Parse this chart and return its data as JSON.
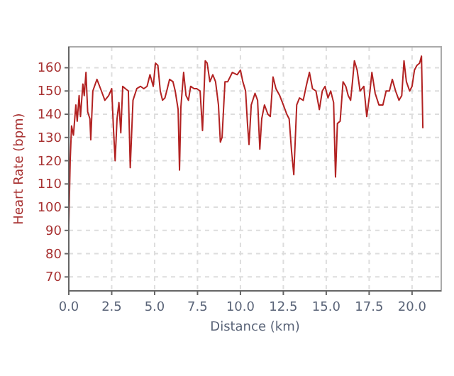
{
  "chart_data": {
    "type": "line",
    "xlabel": "Distance (km)",
    "ylabel": "Heart Rate (bpm)",
    "xlim": [
      0,
      21.7
    ],
    "ylim": [
      64,
      169
    ],
    "xticks": [
      {
        "value": 0,
        "label": "0.0"
      },
      {
        "value": 2.5,
        "label": "2.5"
      },
      {
        "value": 5,
        "label": "5.0"
      },
      {
        "value": 7.5,
        "label": "7.5"
      },
      {
        "value": 10,
        "label": "10.0"
      },
      {
        "value": 12.5,
        "label": "12.5"
      },
      {
        "value": 15,
        "label": "15.0"
      },
      {
        "value": 17.5,
        "label": "17.5"
      },
      {
        "value": 20,
        "label": "20.0"
      }
    ],
    "yticks": [
      70,
      80,
      90,
      100,
      110,
      120,
      130,
      140,
      150,
      160
    ],
    "grid": true,
    "marker": "none",
    "line_style": "solid",
    "x": [
      0,
      0.08,
      0.16,
      0.27,
      0.41,
      0.49,
      0.6,
      0.68,
      0.82,
      0.9,
      1.0,
      1.1,
      1.23,
      1.28,
      1.4,
      1.64,
      1.9,
      2.1,
      2.32,
      2.5,
      2.6,
      2.7,
      2.81,
      2.92,
      3.03,
      3.14,
      3.3,
      3.47,
      3.58,
      3.74,
      3.96,
      4.18,
      4.37,
      4.56,
      4.73,
      4.92,
      5.05,
      5.19,
      5.33,
      5.46,
      5.6,
      5.74,
      5.87,
      6.07,
      6.2,
      6.37,
      6.45,
      6.53,
      6.69,
      6.83,
      6.97,
      7.1,
      7.3,
      7.46,
      7.65,
      7.79,
      7.95,
      8.06,
      8.22,
      8.39,
      8.55,
      8.72,
      8.83,
      8.93,
      9.1,
      9.26,
      9.53,
      9.81,
      10.0,
      10.14,
      10.3,
      10.41,
      10.5,
      10.63,
      10.85,
      11.0,
      11.13,
      11.24,
      11.4,
      11.6,
      11.74,
      11.9,
      12.07,
      12.29,
      12.5,
      12.7,
      12.84,
      12.98,
      13.11,
      13.28,
      13.44,
      13.66,
      13.83,
      14.02,
      14.2,
      14.4,
      14.6,
      14.77,
      14.93,
      15.1,
      15.26,
      15.43,
      15.54,
      15.65,
      15.81,
      15.98,
      16.14,
      16.28,
      16.42,
      16.53,
      16.64,
      16.8,
      16.97,
      17.19,
      17.36,
      17.52,
      17.66,
      17.85,
      18.07,
      18.3,
      18.49,
      18.68,
      18.85,
      19.04,
      19.24,
      19.4,
      19.53,
      19.67,
      19.86,
      20.0,
      20.14,
      20.28,
      20.44,
      20.55,
      20.63
    ],
    "series": [
      {
        "color": "#b22222",
        "values": [
          92,
          120,
          135,
          131,
          144,
          137,
          148,
          139,
          153,
          148,
          158,
          141,
          138,
          129,
          150,
          155,
          150,
          146,
          148,
          151,
          134,
          120,
          138,
          145,
          132,
          152,
          151,
          150,
          117,
          146,
          151,
          152,
          151,
          152,
          157,
          152,
          162,
          161,
          150,
          146,
          147,
          151,
          155,
          154,
          150,
          142,
          116,
          143,
          158,
          148,
          146,
          152,
          151,
          151,
          150,
          133,
          163,
          162,
          154,
          157,
          154,
          144,
          128,
          130,
          154,
          154,
          158,
          157,
          159,
          154,
          150,
          136,
          127,
          144,
          149,
          146,
          125,
          138,
          144,
          140,
          139,
          156,
          151,
          148,
          144,
          140,
          138,
          124,
          114,
          144,
          147,
          146,
          152,
          158,
          151,
          150,
          142,
          150,
          152,
          147,
          150,
          145,
          113,
          136,
          137,
          154,
          152,
          148,
          146,
          154,
          163,
          159,
          150,
          152,
          139,
          148,
          158,
          149,
          144,
          144,
          150,
          150,
          155,
          150,
          146,
          148,
          163,
          154,
          150,
          152,
          159,
          161,
          162,
          165,
          134
        ]
      }
    ]
  }
}
